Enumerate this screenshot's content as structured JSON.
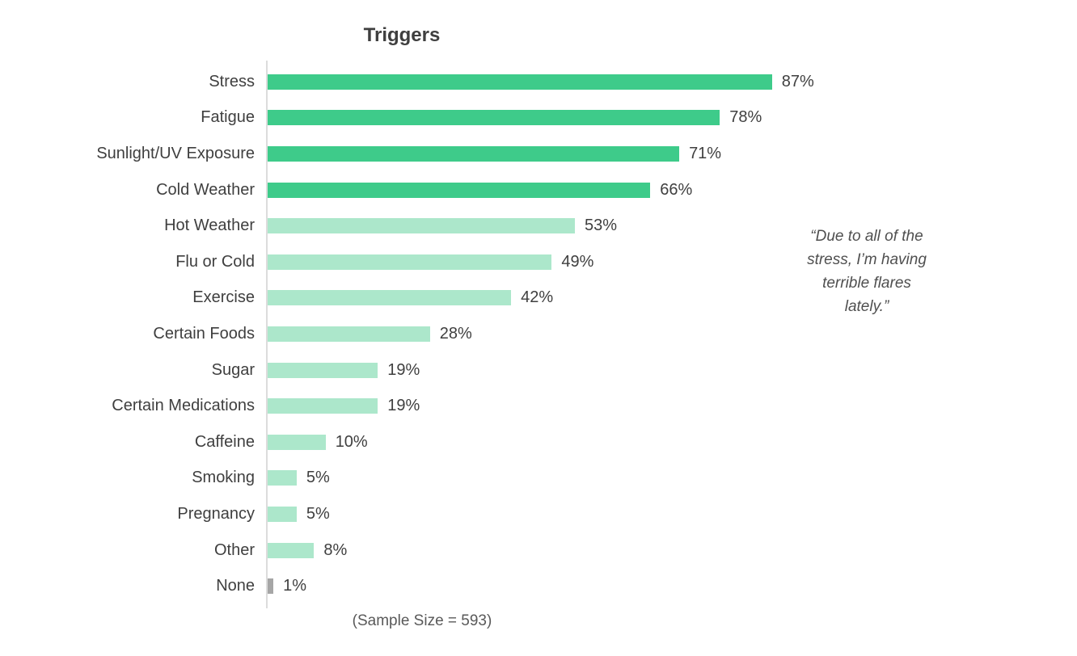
{
  "chart_data": {
    "type": "bar",
    "orientation": "horizontal",
    "title": "Triggers",
    "categories": [
      "Stress",
      "Fatigue",
      "Sunlight/UV Exposure",
      "Cold Weather",
      "Hot Weather",
      "Flu or Cold",
      "Exercise",
      "Certain Foods",
      "Sugar",
      "Certain Medications",
      "Caffeine",
      "Smoking",
      "Pregnancy",
      "Other",
      "None"
    ],
    "values": [
      87,
      78,
      71,
      66,
      53,
      49,
      42,
      28,
      19,
      19,
      10,
      5,
      5,
      8,
      1
    ],
    "value_suffix": "%",
    "data_labels": [
      "87%",
      "78%",
      "71%",
      "66%",
      "53%",
      "49%",
      "42%",
      "28%",
      "19%",
      "19%",
      "10%",
      "5%",
      "5%",
      "8%",
      "1%"
    ],
    "bar_groups": [
      "dark",
      "dark",
      "dark",
      "dark",
      "light",
      "light",
      "light",
      "light",
      "light",
      "light",
      "light",
      "light",
      "light",
      "light",
      "gray"
    ],
    "colors": {
      "dark": "#3ecb8a",
      "light": "#ace7cb",
      "gray": "#a6a6a6",
      "axis_line": "#dcdcdc",
      "label_text": "#3f3f3f",
      "footnote_text": "#595959",
      "quote_text": "#4f4f4f"
    },
    "xlim": [
      0,
      100
    ],
    "grid": false,
    "legend": false,
    "footnote": "(Sample Size = 593)",
    "annotation": "“Due to all of the stress, I’m having terrible flares lately.”"
  },
  "quote": {
    "lines": [
      "“Due to all of the",
      "stress, I’m having",
      "terrible flares",
      "lately.”"
    ]
  }
}
